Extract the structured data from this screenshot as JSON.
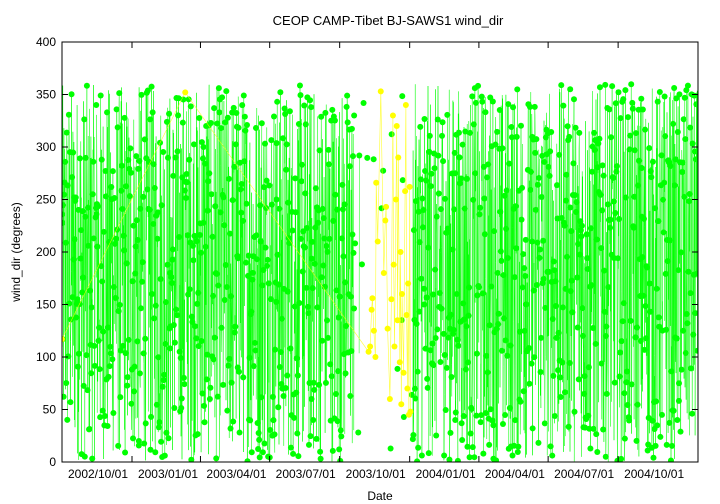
{
  "chart_data": {
    "type": "scatter",
    "title": "CEOP CAMP-Tibet BJ-SAWS1  wind_dir",
    "xlabel": "Date",
    "ylabel": "wind_dir (degrees)",
    "xlim": [
      "2002/10/01",
      "2005/01/14"
    ],
    "ylim": [
      0,
      400
    ],
    "yticks": [
      0,
      50,
      100,
      150,
      200,
      250,
      300,
      350,
      400
    ],
    "xticks": [
      "2002/10/01",
      "2003/01/01",
      "2003/04/01",
      "2003/07/01",
      "2003/10/01",
      "2004/01/01",
      "2004/04/01",
      "2004/07/01",
      "2004/10/01"
    ],
    "grid": false,
    "legend": "none",
    "value_range": [
      0,
      360
    ],
    "series": [
      {
        "color": "#00ff00",
        "points": [
          [
            "2002/10/02",
            117
          ],
          [
            "2002/11/15",
            340
          ],
          [
            "2003/01/10",
            20
          ],
          [
            "2003/02/20",
            180
          ],
          [
            "2003/04/05",
            300
          ],
          [
            "2003/05/20",
            90
          ],
          [
            "2003/07/10",
            250
          ],
          [
            "2003/08/25",
            60
          ],
          [
            "2003/10/20",
            330
          ],
          [
            "2004/01/20",
            150
          ],
          [
            "2004/03/01",
            275
          ],
          [
            "2004/04/20",
            35
          ],
          [
            "2004/06/10",
            210
          ],
          [
            "2004/07/30",
            355
          ],
          [
            "2004/09/15",
            120
          ],
          [
            "2004/11/01",
            280
          ],
          [
            "2004/12/20",
            75
          ]
        ]
      },
      {
        "color": "#ffff00",
        "points": [
          [
            "2002/10/01",
            117
          ],
          [
            "2003/03/12",
            352
          ],
          [
            "2003/11/08",
            105
          ],
          [
            "2003/11/10",
            110
          ],
          [
            "2003/11/12",
            145
          ],
          [
            "2003/11/13",
            156
          ],
          [
            "2003/11/15",
            125
          ],
          [
            "2003/11/17",
            100
          ],
          [
            "2003/11/18",
            266
          ],
          [
            "2003/11/20",
            210
          ],
          [
            "2003/11/24",
            353
          ],
          [
            "2003/11/28",
            180
          ],
          [
            "2003/11/30",
            230
          ],
          [
            "2003/12/01",
            243
          ],
          [
            "2003/12/03",
            127
          ],
          [
            "2003/12/06",
            60
          ],
          [
            "2003/12/08",
            155
          ],
          [
            "2003/12/10",
            330
          ],
          [
            "2003/12/11",
            188
          ],
          [
            "2003/12/12",
            110
          ],
          [
            "2003/12/14",
            250
          ],
          [
            "2003/12/15",
            320
          ],
          [
            "2003/12/16",
            135
          ],
          [
            "2003/12/17",
            290
          ],
          [
            "2003/12/19",
            95
          ],
          [
            "2003/12/20",
            200
          ],
          [
            "2003/12/21",
            55
          ],
          [
            "2003/12/22",
            160
          ],
          [
            "2003/12/24",
            85
          ],
          [
            "2003/12/26",
            258
          ],
          [
            "2003/12/27",
            340
          ],
          [
            "2003/12/28",
            140
          ],
          [
            "2003/12/29",
            70
          ],
          [
            "2003/12/30",
            170
          ],
          [
            "2003/12/31",
            45
          ],
          [
            "2004/01/01",
            262
          ],
          [
            "2004/01/02",
            48
          ]
        ]
      }
    ]
  }
}
